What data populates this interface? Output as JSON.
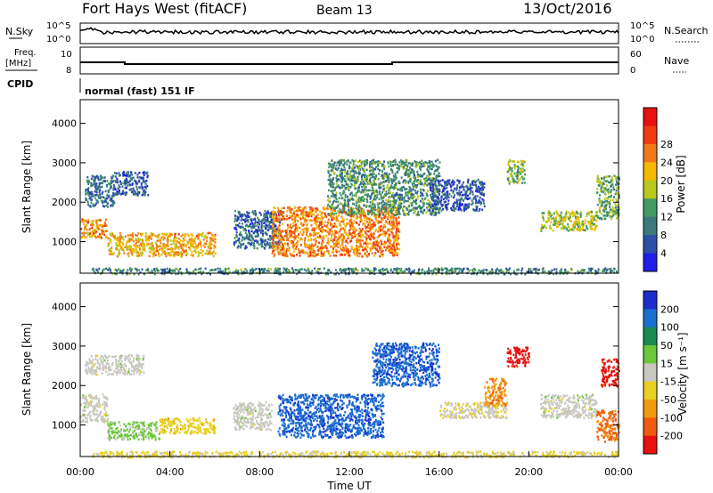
{
  "header": {
    "title": "Fort Hays West (fitACF)",
    "beam": "Beam 13",
    "date": "13/Oct/2016"
  },
  "top_panels": {
    "nsky_label": "N.Sky",
    "nsky_ticks": [
      "10^5",
      "10^0"
    ],
    "nsearch_label": "N.Search",
    "nsearch_ticks": [
      "10^5",
      "10^0"
    ],
    "freq_label_1": "Freq.",
    "freq_label_2": "[MHz]",
    "freq_ticks": [
      "10",
      "8"
    ],
    "nave_label": "Nave",
    "nave_ticks": [
      "60",
      "0"
    ],
    "cpid_label": "CPID",
    "cpid_text": "normal (fast) 151 IF"
  },
  "colors": {
    "power_scale": [
      "#1f1fe8",
      "#2e4fa8",
      "#3a7a7a",
      "#3f9a62",
      "#b8c81e",
      "#f5b800",
      "#f07a1a",
      "#f03a10",
      "#e81010"
    ],
    "velocity_scale": [
      "#1a2ecc",
      "#1a6ed0",
      "#1a8a50",
      "#6ac83a",
      "#c8c8c0",
      "#e8d020",
      "#f09a10",
      "#f05a10",
      "#e81010"
    ]
  },
  "chart_data": [
    {
      "type": "heatmap",
      "name": "power-panel",
      "ylabel": "Slant Range [km]",
      "y_ticks": [
        1000,
        2000,
        3000,
        4000
      ],
      "ylim": [
        200,
        4600
      ],
      "x_ticks": [
        "00:00",
        "04:00",
        "08:00",
        "12:00",
        "16:00",
        "20:00",
        "00:00"
      ],
      "xlim_hours": [
        0,
        24
      ],
      "colorbar": {
        "label": "Power [dB]",
        "ticks": [
          "4",
          "8",
          "12",
          "16",
          "20",
          "24",
          "28"
        ],
        "range": [
          0,
          32
        ]
      },
      "regions": [
        {
          "t0": 0.0,
          "t1": 1.2,
          "r0": 1100,
          "r1": 1600,
          "v": 22
        },
        {
          "t0": 0.2,
          "t1": 1.5,
          "r0": 1900,
          "r1": 2700,
          "v": 8
        },
        {
          "t0": 1.5,
          "t1": 3.0,
          "r0": 2200,
          "r1": 2800,
          "v": 6
        },
        {
          "t0": 1.2,
          "t1": 6.0,
          "r0": 650,
          "r1": 1250,
          "v": 20
        },
        {
          "t0": 6.8,
          "t1": 9.0,
          "r0": 850,
          "r1": 1800,
          "v": 7
        },
        {
          "t0": 8.5,
          "t1": 14.2,
          "r0": 650,
          "r1": 1900,
          "v": 23
        },
        {
          "t0": 11.0,
          "t1": 16.0,
          "r0": 1700,
          "r1": 3100,
          "v": 11
        },
        {
          "t0": 15.5,
          "t1": 18.0,
          "r0": 1800,
          "r1": 2600,
          "v": 6
        },
        {
          "t0": 19.0,
          "t1": 19.8,
          "r0": 2500,
          "r1": 3100,
          "v": 14
        },
        {
          "t0": 20.5,
          "t1": 23.0,
          "r0": 1300,
          "r1": 1800,
          "v": 16
        },
        {
          "t0": 23.0,
          "t1": 24.0,
          "r0": 1600,
          "r1": 2700,
          "v": 13
        },
        {
          "t0": 0.5,
          "t1": 24.0,
          "r0": 200,
          "r1": 350,
          "v": 10
        }
      ]
    },
    {
      "type": "heatmap",
      "name": "velocity-panel",
      "ylabel": "Slant Range [km]",
      "y_ticks": [
        1000,
        2000,
        3000,
        4000
      ],
      "ylim": [
        200,
        4600
      ],
      "x_ticks": [
        "00:00",
        "04:00",
        "08:00",
        "12:00",
        "16:00",
        "20:00",
        "00:00"
      ],
      "xlim_hours": [
        0,
        24
      ],
      "xlabel": "Time UT",
      "colorbar": {
        "label": "Velocity [m s⁻¹]",
        "ticks": [
          "200",
          "100",
          "50",
          "15",
          "-15",
          "-50",
          "-100",
          "-200"
        ],
        "range": [
          -250,
          250
        ]
      },
      "regions": [
        {
          "t0": 0.0,
          "t1": 1.2,
          "r0": 1100,
          "r1": 1800,
          "v": 0
        },
        {
          "t0": 0.2,
          "t1": 2.8,
          "r0": 2300,
          "r1": 2800,
          "v": 0
        },
        {
          "t0": 1.2,
          "t1": 3.5,
          "r0": 650,
          "r1": 1100,
          "v": 40
        },
        {
          "t0": 3.5,
          "t1": 6.0,
          "r0": 800,
          "r1": 1200,
          "v": -60
        },
        {
          "t0": 6.8,
          "t1": 8.5,
          "r0": 900,
          "r1": 1600,
          "v": 0
        },
        {
          "t0": 8.8,
          "t1": 13.5,
          "r0": 700,
          "r1": 1800,
          "v": 180
        },
        {
          "t0": 13.0,
          "t1": 16.0,
          "r0": 2000,
          "r1": 3100,
          "v": 180
        },
        {
          "t0": 16.0,
          "t1": 19.0,
          "r0": 1200,
          "r1": 1600,
          "v": -20
        },
        {
          "t0": 18.0,
          "t1": 19.0,
          "r0": 1500,
          "r1": 2200,
          "v": -120
        },
        {
          "t0": 19.0,
          "t1": 20.0,
          "r0": 2500,
          "r1": 3000,
          "v": -220
        },
        {
          "t0": 20.5,
          "t1": 23.0,
          "r0": 1200,
          "r1": 1800,
          "v": 0
        },
        {
          "t0": 23.0,
          "t1": 24.0,
          "r0": 600,
          "r1": 1400,
          "v": -150
        },
        {
          "t0": 23.2,
          "t1": 24.0,
          "r0": 2000,
          "r1": 2700,
          "v": -220
        },
        {
          "t0": 0.5,
          "t1": 24.0,
          "r0": 200,
          "r1": 350,
          "v": -40
        }
      ]
    }
  ]
}
